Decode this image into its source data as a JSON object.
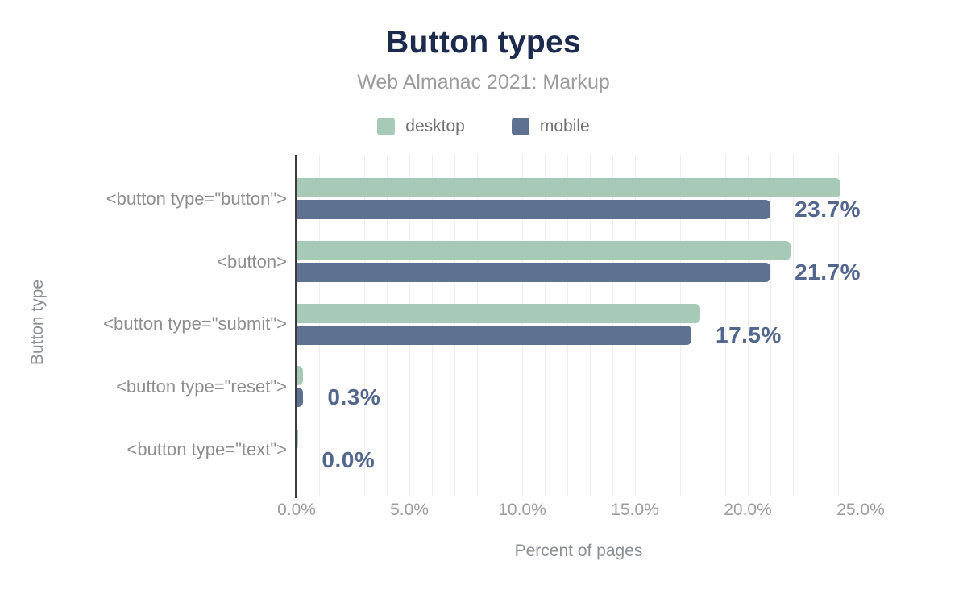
{
  "header": {
    "title": "Button types",
    "subtitle": "Web Almanac 2021: Markup"
  },
  "legend": [
    {
      "label": "desktop",
      "color": "#a6cab7"
    },
    {
      "label": "mobile",
      "color": "#5e7191"
    }
  ],
  "colors": {
    "desktop_bar": "#a6cab7",
    "mobile_bar": "#5e7191",
    "title": "#1b2a4d",
    "subtitle": "#9c9c9c",
    "value_label": "#53678e",
    "axis_text": "#9c9c9c",
    "gridline": "#eeeeee",
    "axis_line": "#3b3b40"
  },
  "chart_data": {
    "type": "bar",
    "orientation": "horizontal",
    "title": "Button types",
    "subtitle": "Web Almanac 2021: Markup",
    "categories": [
      "<button type=\"button\">",
      "<button>",
      "<button type=\"submit\">",
      "<button type=\"reset\">",
      "<button type=\"text\">"
    ],
    "series": [
      {
        "name": "desktop",
        "color": "#a6cab7",
        "values": [
          24.1,
          21.9,
          17.9,
          0.3,
          0.07
        ]
      },
      {
        "name": "mobile",
        "color": "#5e7191",
        "values": [
          23.7,
          21.7,
          17.5,
          0.3,
          0.05
        ]
      }
    ],
    "value_labels": [
      "23.7%",
      "21.7%",
      "17.5%",
      "0.3%",
      "0.0%"
    ],
    "value_labels_series": "mobile",
    "xlabel": "Percent of pages",
    "ylabel": "Button type",
    "x_ticks": [
      "0.0%",
      "5.0%",
      "10.0%",
      "15.0%",
      "20.0%",
      "25.0%"
    ],
    "xlim": [
      0,
      25
    ],
    "grid_step_pct": 1,
    "grid": true,
    "legend_position": "top"
  }
}
